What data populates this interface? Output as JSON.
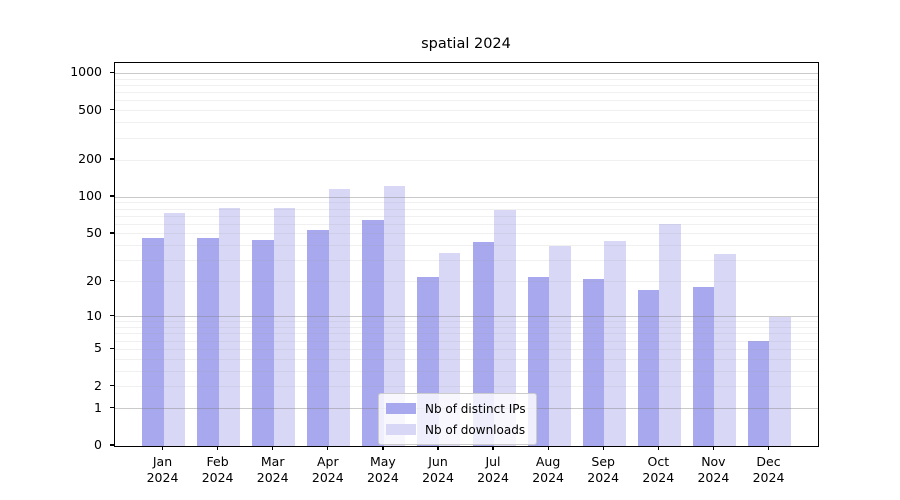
{
  "chart_data": {
    "type": "bar",
    "title": "spatial 2024",
    "year": "2024",
    "categories": [
      "Jan",
      "Feb",
      "Mar",
      "Apr",
      "May",
      "Jun",
      "Jul",
      "Aug",
      "Sep",
      "Oct",
      "Nov",
      "Dec"
    ],
    "series": [
      {
        "name": "Nb of distinct IPs",
        "color": "#a8a8ee",
        "values": [
          46,
          46,
          45,
          54,
          65,
          22,
          43,
          22,
          21,
          17,
          18,
          6
        ]
      },
      {
        "name": "Nb of downloads",
        "color": "#d8d8f6",
        "values": [
          74,
          82,
          81,
          116,
          123,
          35,
          78,
          40,
          44,
          60,
          34,
          10
        ]
      }
    ],
    "yscale": "log1p",
    "ylabel": "",
    "xlabel": "",
    "yticks": [
      "0",
      "1",
      "2",
      "5",
      "10",
      "20",
      "50",
      "100",
      "200",
      "500",
      "1000"
    ],
    "ylim": [
      0,
      1212
    ],
    "grid": {
      "on": true,
      "major": [
        1,
        10,
        100,
        1000
      ],
      "minor": [
        2,
        3,
        4,
        5,
        6,
        7,
        8,
        9,
        20,
        30,
        40,
        50,
        60,
        70,
        80,
        90,
        200,
        300,
        400,
        500,
        600,
        700,
        800,
        900
      ]
    },
    "legend_position": "lower center"
  },
  "colors": {
    "bar_distinct_ips": "#a8a8ee",
    "bar_downloads": "#d8d8f6",
    "axis": "#000000",
    "major_grid": "#c9c9c9",
    "minor_grid": "#ececec",
    "legend_border": "#cccccc"
  }
}
